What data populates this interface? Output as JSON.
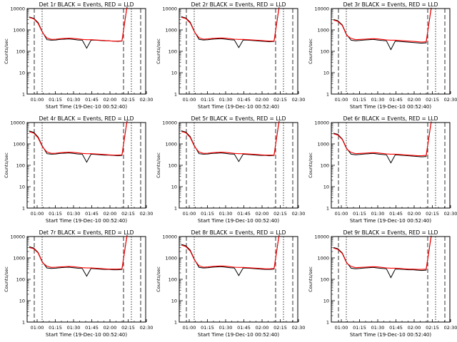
{
  "chart_data": [
    {
      "type": "line",
      "title": "Det 1r BLACK = Events, RED = LLD",
      "ylabel": "Counts/sec",
      "xlabel": "Start Time (19-Dec-10 00:52:40)",
      "yscale": "log",
      "ylim": [
        1,
        10000
      ],
      "y_ticks": [
        "1",
        "10",
        "100",
        "1000",
        "10000"
      ],
      "x_ticks": [
        "01:00",
        "01:15",
        "01:30",
        "01:45",
        "02:00",
        "02:15",
        "02:30"
      ],
      "series": [
        {
          "name": "Events",
          "color": "#000000",
          "values": [
            4000,
            3500,
            2200,
            800,
            350,
            330,
            340,
            360,
            370,
            380,
            360,
            340,
            330,
            140,
            330,
            330,
            320,
            310,
            310,
            300,
            290,
            300,
            8000,
            12000
          ]
        },
        {
          "name": "LLD",
          "color": "#ff0000",
          "values": [
            3800,
            3300,
            2000,
            750,
            420,
            360,
            370,
            390,
            400,
            410,
            400,
            380,
            360,
            350,
            350,
            340,
            330,
            320,
            310,
            300,
            300,
            310,
            7500,
            11000
          ]
        }
      ]
    },
    {
      "type": "line",
      "title": "Det 2r BLACK = Events, RED = LLD",
      "ylabel": "Counts/sec",
      "xlabel": "Start Time (19-Dec-10 00:52:40)",
      "yscale": "log",
      "ylim": [
        1,
        10000
      ],
      "y_ticks": [
        "1",
        "10",
        "100",
        "1000",
        "10000"
      ],
      "x_ticks": [
        "01:00",
        "01:15",
        "01:30",
        "01:45",
        "02:00",
        "02:15",
        "02:30"
      ],
      "series": [
        {
          "name": "Events",
          "color": "#000000",
          "values": [
            4200,
            3600,
            2300,
            820,
            360,
            340,
            350,
            370,
            380,
            390,
            370,
            350,
            340,
            150,
            340,
            330,
            320,
            310,
            300,
            290,
            280,
            290,
            7800,
            11500
          ]
        },
        {
          "name": "LLD",
          "color": "#ff0000",
          "values": [
            3900,
            3400,
            2100,
            780,
            430,
            370,
            380,
            400,
            410,
            420,
            410,
            390,
            370,
            360,
            360,
            350,
            340,
            330,
            320,
            310,
            300,
            300,
            7300,
            10500
          ]
        }
      ]
    },
    {
      "type": "line",
      "title": "Det 3r BLACK = Events, RED = LLD",
      "ylabel": "Counts/sec",
      "xlabel": "Start Time (19-Dec-10 00:52:40)",
      "yscale": "log",
      "ylim": [
        1,
        10000
      ],
      "y_ticks": [
        "1",
        "10",
        "100",
        "1000",
        "10000"
      ],
      "x_ticks": [
        "01:00",
        "01:15",
        "01:30",
        "01:45",
        "02:00",
        "02:15",
        "02:30"
      ],
      "series": [
        {
          "name": "Events",
          "color": "#000000",
          "values": [
            3100,
            2700,
            1700,
            600,
            330,
            310,
            320,
            340,
            350,
            360,
            340,
            320,
            310,
            120,
            300,
            290,
            280,
            270,
            260,
            250,
            240,
            250,
            7000,
            11000
          ]
        },
        {
          "name": "LLD",
          "color": "#ff0000",
          "values": [
            2900,
            2500,
            1600,
            560,
            400,
            350,
            360,
            370,
            380,
            390,
            380,
            360,
            340,
            330,
            330,
            320,
            310,
            300,
            290,
            280,
            270,
            280,
            6500,
            10000
          ]
        }
      ]
    },
    {
      "type": "line",
      "title": "Det 4r BLACK = Events, RED = LLD",
      "ylabel": "Counts/sec",
      "xlabel": "Start Time (19-Dec-10 00:52:40)",
      "yscale": "log",
      "ylim": [
        1,
        10000
      ],
      "y_ticks": [
        "1",
        "10",
        "100",
        "1000",
        "10000"
      ],
      "x_ticks": [
        "01:00",
        "01:15",
        "01:30",
        "01:45",
        "02:00",
        "02:15",
        "02:30"
      ],
      "series": [
        {
          "name": "Events",
          "color": "#000000",
          "values": [
            4000,
            3500,
            2100,
            780,
            350,
            330,
            340,
            360,
            370,
            380,
            360,
            340,
            330,
            140,
            330,
            320,
            310,
            300,
            300,
            290,
            280,
            290,
            7800,
            12000
          ]
        },
        {
          "name": "LLD",
          "color": "#ff0000",
          "values": [
            3700,
            3200,
            1900,
            720,
            420,
            360,
            370,
            390,
            400,
            410,
            400,
            380,
            360,
            350,
            350,
            340,
            330,
            320,
            310,
            300,
            300,
            310,
            7300,
            11000
          ]
        }
      ]
    },
    {
      "type": "line",
      "title": "Det 5r BLACK = Events, RED = LLD",
      "ylabel": "Counts/sec",
      "xlabel": "Start Time (19-Dec-10 00:52:40)",
      "yscale": "log",
      "ylim": [
        1,
        10000
      ],
      "y_ticks": [
        "1",
        "10",
        "100",
        "1000",
        "10000"
      ],
      "x_ticks": [
        "01:00",
        "01:15",
        "01:30",
        "01:45",
        "02:00",
        "02:15",
        "02:30"
      ],
      "series": [
        {
          "name": "Events",
          "color": "#000000",
          "values": [
            4100,
            3600,
            2200,
            800,
            350,
            330,
            340,
            360,
            370,
            380,
            360,
            340,
            330,
            150,
            330,
            320,
            310,
            300,
            290,
            290,
            280,
            290,
            7900,
            11800
          ]
        },
        {
          "name": "LLD",
          "color": "#ff0000",
          "values": [
            3800,
            3300,
            2000,
            740,
            420,
            360,
            370,
            390,
            400,
            410,
            400,
            380,
            360,
            350,
            350,
            340,
            330,
            320,
            310,
            300,
            300,
            300,
            7400,
            10800
          ]
        }
      ]
    },
    {
      "type": "line",
      "title": "Det 6r BLACK = Events, RED = LLD",
      "ylabel": "Counts/sec",
      "xlabel": "Start Time (19-Dec-10 00:52:40)",
      "yscale": "log",
      "ylim": [
        1,
        10000
      ],
      "y_ticks": [
        "1",
        "10",
        "100",
        "1000",
        "10000"
      ],
      "x_ticks": [
        "01:00",
        "01:15",
        "01:30",
        "01:45",
        "02:00",
        "02:15",
        "02:30"
      ],
      "series": [
        {
          "name": "Events",
          "color": "#000000",
          "values": [
            3200,
            2800,
            1700,
            620,
            330,
            310,
            320,
            340,
            350,
            360,
            340,
            320,
            310,
            130,
            310,
            300,
            290,
            280,
            270,
            260,
            250,
            260,
            7200,
            11200
          ]
        },
        {
          "name": "LLD",
          "color": "#ff0000",
          "values": [
            3000,
            2600,
            1600,
            580,
            400,
            350,
            360,
            370,
            380,
            390,
            380,
            360,
            340,
            330,
            330,
            320,
            310,
            300,
            290,
            280,
            280,
            290,
            6800,
            10200
          ]
        }
      ]
    },
    {
      "type": "line",
      "title": "Det 7r BLACK = Events, RED = LLD",
      "ylabel": "Counts/sec",
      "xlabel": "Start Time (19-Dec-10 00:52:40)",
      "yscale": "log",
      "ylim": [
        1,
        10000
      ],
      "y_ticks": [
        "1",
        "10",
        "100",
        "1000",
        "10000"
      ],
      "x_ticks": [
        "01:00",
        "01:15",
        "01:30",
        "01:45",
        "02:00",
        "02:15",
        "02:30"
      ],
      "series": [
        {
          "name": "Events",
          "color": "#000000",
          "values": [
            3300,
            2900,
            1800,
            640,
            340,
            320,
            330,
            350,
            360,
            370,
            350,
            330,
            320,
            140,
            320,
            310,
            300,
            290,
            290,
            280,
            280,
            290,
            7600,
            11800
          ]
        },
        {
          "name": "LLD",
          "color": "#ff0000",
          "values": [
            3100,
            2700,
            1700,
            600,
            410,
            360,
            370,
            380,
            390,
            400,
            390,
            370,
            350,
            340,
            340,
            330,
            320,
            310,
            300,
            300,
            300,
            310,
            7100,
            10800
          ]
        }
      ]
    },
    {
      "type": "line",
      "title": "Det 8r BLACK = Events, RED = LLD",
      "ylabel": "Counts/sec",
      "xlabel": "Start Time (19-Dec-10 00:52:40)",
      "yscale": "log",
      "ylim": [
        1,
        10000
      ],
      "y_ticks": [
        "1",
        "10",
        "100",
        "1000",
        "10000"
      ],
      "x_ticks": [
        "01:00",
        "01:15",
        "01:30",
        "01:45",
        "02:00",
        "02:15",
        "02:30"
      ],
      "series": [
        {
          "name": "Events",
          "color": "#000000",
          "values": [
            4300,
            3700,
            2300,
            830,
            360,
            340,
            350,
            370,
            380,
            390,
            370,
            350,
            340,
            150,
            340,
            330,
            320,
            310,
            300,
            290,
            290,
            300,
            7900,
            12000
          ]
        },
        {
          "name": "LLD",
          "color": "#ff0000",
          "values": [
            4000,
            3400,
            2100,
            780,
            430,
            370,
            380,
            400,
            410,
            420,
            410,
            390,
            370,
            360,
            360,
            350,
            340,
            330,
            320,
            310,
            310,
            320,
            7400,
            11000
          ]
        }
      ]
    },
    {
      "type": "line",
      "title": "Det 9r BLACK = Events, RED = LLD",
      "ylabel": "Counts/sec",
      "xlabel": "Start Time (19-Dec-10 00:52:40)",
      "yscale": "log",
      "ylim": [
        1,
        10000
      ],
      "y_ticks": [
        "1",
        "10",
        "100",
        "1000",
        "10000"
      ],
      "x_ticks": [
        "01:00",
        "01:15",
        "01:30",
        "01:45",
        "02:00",
        "02:15",
        "02:30"
      ],
      "series": [
        {
          "name": "Events",
          "color": "#000000",
          "values": [
            3100,
            2700,
            1700,
            610,
            330,
            310,
            320,
            340,
            350,
            360,
            340,
            320,
            310,
            120,
            300,
            300,
            290,
            280,
            280,
            270,
            260,
            270,
            7100,
            11000
          ]
        },
        {
          "name": "LLD",
          "color": "#ff0000",
          "values": [
            2900,
            2500,
            1600,
            570,
            400,
            350,
            360,
            370,
            380,
            390,
            380,
            360,
            340,
            330,
            330,
            320,
            310,
            300,
            300,
            290,
            290,
            300,
            6600,
            10000
          ]
        }
      ]
    }
  ]
}
